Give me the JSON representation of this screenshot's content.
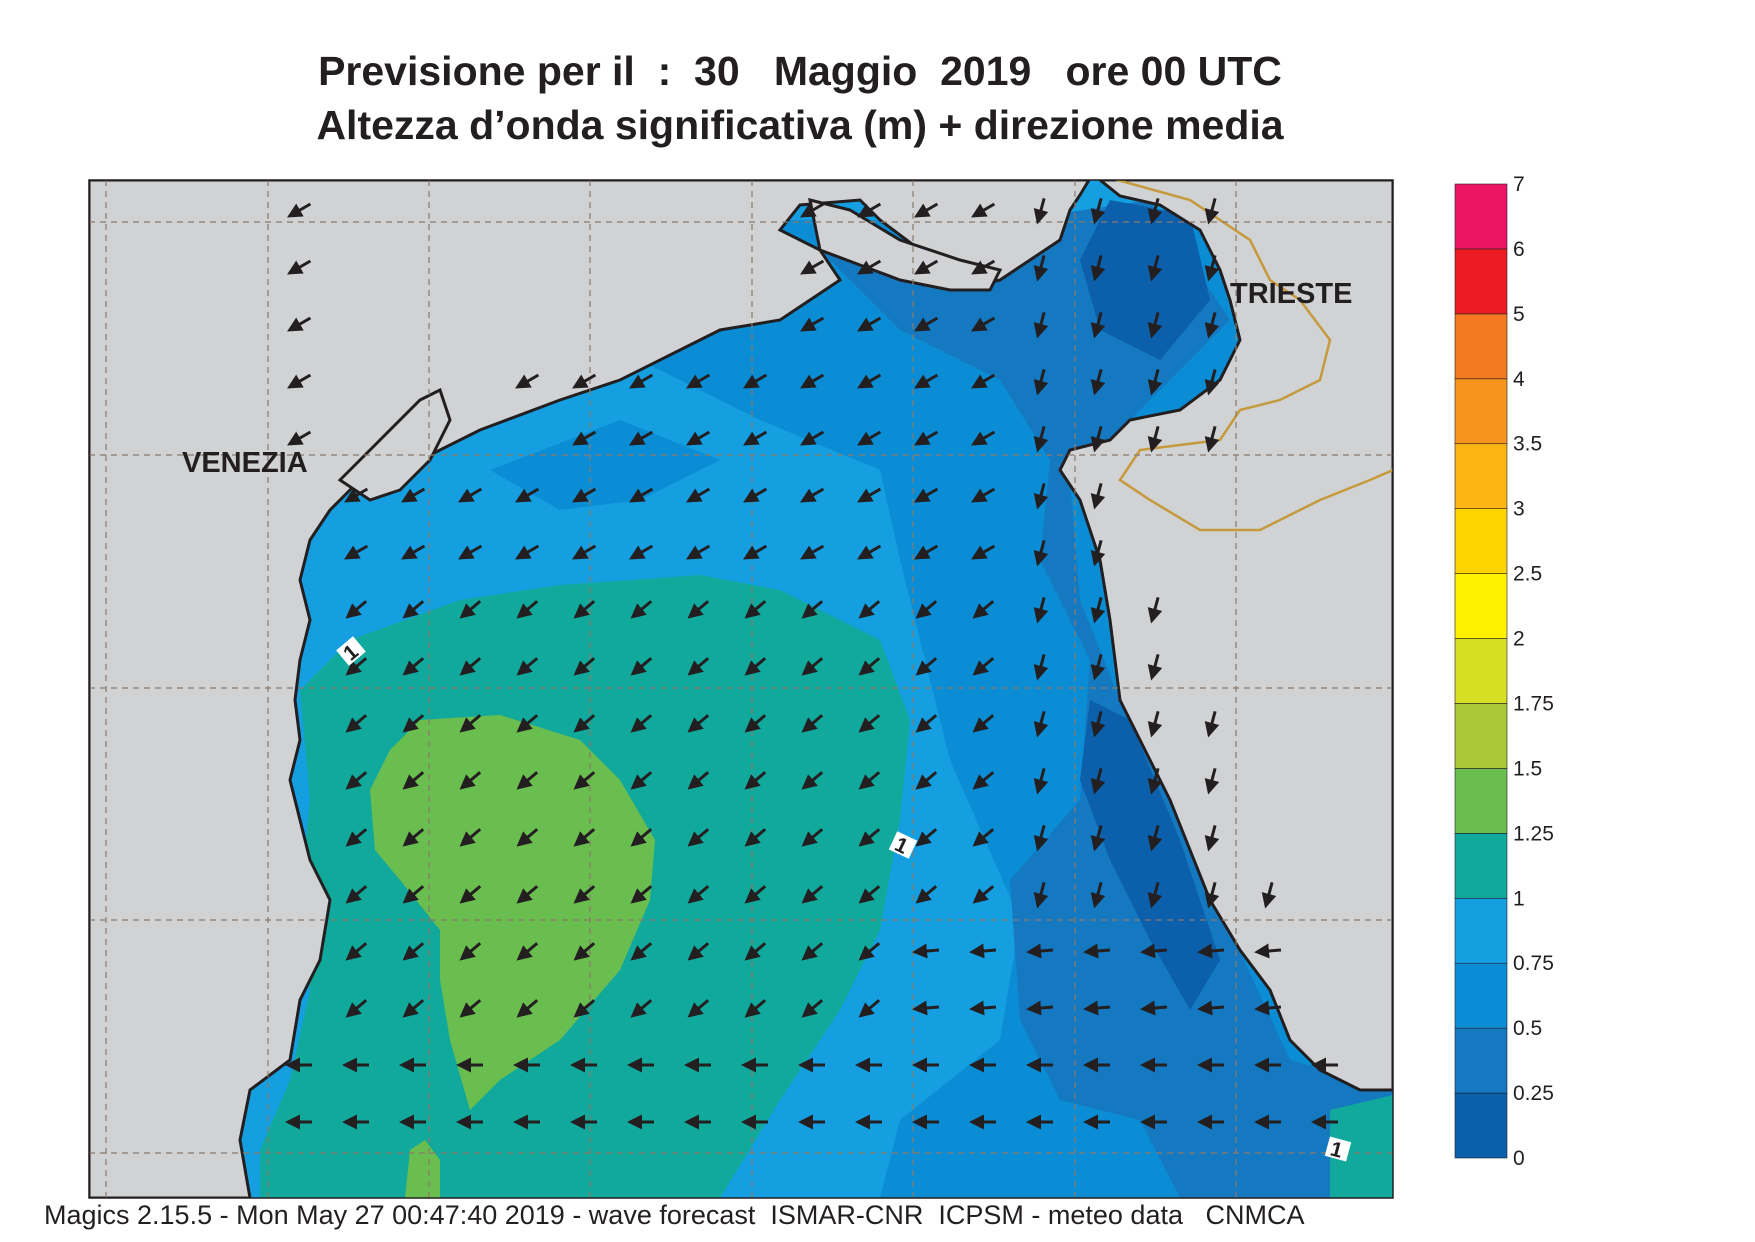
{
  "title": {
    "line1": "Previsione per il  :  30   Maggio  2019   ore 00 UTC",
    "line2": "Altezza d’onda significativa (m) + direzione media"
  },
  "map": {
    "cities": [
      {
        "name": "VENEZIA"
      },
      {
        "name": "TRIESTE"
      }
    ],
    "contour_labels": [
      "1",
      "1",
      "1",
      "1"
    ],
    "land_color": "#d1d2d4",
    "coast_color": "#231f20",
    "border_color": "#c49a3c",
    "wave_direction": "mostly from northeast toward southwest; from east toward west in the south"
  },
  "legend": {
    "levels": [
      "0",
      "0.25",
      "0.5",
      "0.75",
      "1",
      "1.25",
      "1.5",
      "1.75",
      "2",
      "2.5",
      "3",
      "3.5",
      "4",
      "5",
      "6",
      "7"
    ],
    "colors": [
      "#0b5fab",
      "#1479c1",
      "#0a8dd4",
      "#159fe0",
      "#12a99d",
      "#6abd4f",
      "#aac83a",
      "#d7df25",
      "#fff200",
      "#ffd400",
      "#fdb515",
      "#f7941d",
      "#f47920",
      "#ed1c24",
      "#ec1565"
    ],
    "unit": "m"
  },
  "footer": {
    "text": "Magics 2.15.5 - Mon May 27 00:47:40 2019 - wave forecast  ISMAR-CNR  ICPSM - meteo data   CNMCA"
  }
}
